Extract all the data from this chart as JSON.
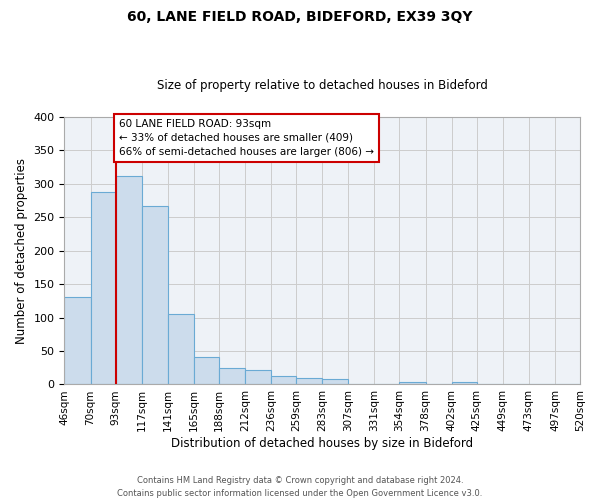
{
  "title": "60, LANE FIELD ROAD, BIDEFORD, EX39 3QY",
  "subtitle": "Size of property relative to detached houses in Bideford",
  "xlabel": "Distribution of detached houses by size in Bideford",
  "ylabel": "Number of detached properties",
  "bin_labels": [
    "46sqm",
    "70sqm",
    "93sqm",
    "117sqm",
    "141sqm",
    "165sqm",
    "188sqm",
    "212sqm",
    "236sqm",
    "259sqm",
    "283sqm",
    "307sqm",
    "331sqm",
    "354sqm",
    "378sqm",
    "402sqm",
    "425sqm",
    "449sqm",
    "473sqm",
    "497sqm",
    "520sqm"
  ],
  "bar_values": [
    130,
    287,
    312,
    267,
    106,
    41,
    25,
    21,
    13,
    10,
    8,
    0,
    0,
    4,
    0,
    4,
    0,
    0,
    0,
    0
  ],
  "bar_color": "#ccdcec",
  "bar_edge_color": "#6aaad4",
  "grid_color": "#cccccc",
  "background_color": "#ffffff",
  "ax_background_color": "#eef2f7",
  "marker_label": "60 LANE FIELD ROAD: 93sqm",
  "annotation_line1": "← 33% of detached houses are smaller (409)",
  "annotation_line2": "66% of semi-detached houses are larger (806) →",
  "annotation_box_color": "#ffffff",
  "annotation_border_color": "#cc0000",
  "red_line_color": "#cc0000",
  "ylim": [
    0,
    400
  ],
  "yticks": [
    0,
    50,
    100,
    150,
    200,
    250,
    300,
    350,
    400
  ],
  "footer_line1": "Contains HM Land Registry data © Crown copyright and database right 2024.",
  "footer_line2": "Contains public sector information licensed under the Open Government Licence v3.0."
}
